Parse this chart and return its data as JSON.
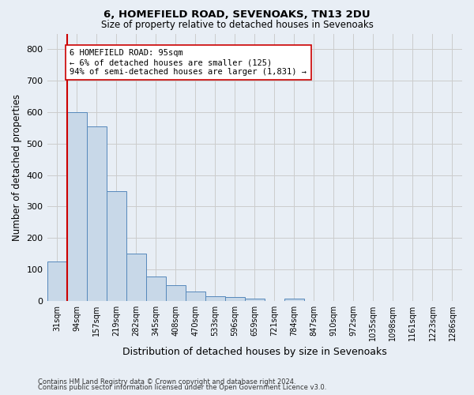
{
  "title1": "6, HOMEFIELD ROAD, SEVENOAKS, TN13 2DU",
  "title2": "Size of property relative to detached houses in Sevenoaks",
  "xlabel": "Distribution of detached houses by size in Sevenoaks",
  "ylabel": "Number of detached properties",
  "bar_values": [
    125,
    600,
    555,
    348,
    150,
    77,
    51,
    30,
    15,
    13,
    7,
    0,
    8,
    0,
    0,
    0,
    0,
    0,
    0,
    0,
    0
  ],
  "bar_labels": [
    "31sqm",
    "94sqm",
    "157sqm",
    "219sqm",
    "282sqm",
    "345sqm",
    "408sqm",
    "470sqm",
    "533sqm",
    "596sqm",
    "659sqm",
    "721sqm",
    "784sqm",
    "847sqm",
    "910sqm",
    "972sqm",
    "1035sqm",
    "1098sqm",
    "1161sqm",
    "1223sqm",
    "1286sqm"
  ],
  "bar_color": "#c8d8e8",
  "bar_edge_color": "#5588bb",
  "vline_index": 1,
  "vline_color": "#cc0000",
  "annotation_text": "6 HOMEFIELD ROAD: 95sqm\n← 6% of detached houses are smaller (125)\n94% of semi-detached houses are larger (1,831) →",
  "annotation_box_color": "#ffffff",
  "annotation_box_edge_color": "#cc0000",
  "ylim": [
    0,
    850
  ],
  "yticks": [
    0,
    100,
    200,
    300,
    400,
    500,
    600,
    700,
    800
  ],
  "grid_color": "#cccccc",
  "bg_color": "#e8eef5",
  "footnote1": "Contains HM Land Registry data © Crown copyright and database right 2024.",
  "footnote2": "Contains public sector information licensed under the Open Government Licence v3.0."
}
